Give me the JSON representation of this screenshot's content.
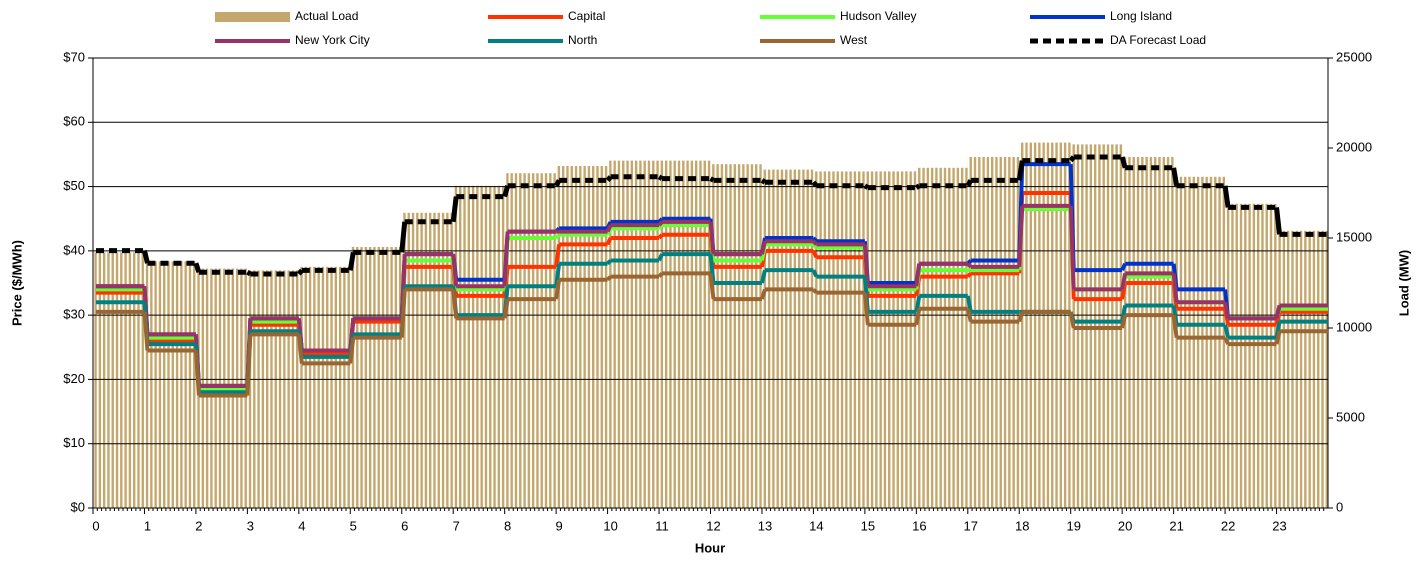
{
  "chart_data": {
    "type": "combo",
    "xlabel": "Hour",
    "ylabel": "Price ($/MWh)",
    "y2label": "Load (MW)",
    "categories": [
      "0",
      "1",
      "2",
      "3",
      "4",
      "5",
      "6",
      "7",
      "8",
      "9",
      "10",
      "11",
      "12",
      "13",
      "14",
      "15",
      "16",
      "17",
      "18",
      "19",
      "20",
      "21",
      "22",
      "23"
    ],
    "ylim": [
      0,
      70
    ],
    "yticks": [
      {
        "value": 0,
        "label": "$0"
      },
      {
        "value": 10,
        "label": "$10"
      },
      {
        "value": 20,
        "label": "$20"
      },
      {
        "value": 30,
        "label": "$30"
      },
      {
        "value": 40,
        "label": "$40"
      },
      {
        "value": 50,
        "label": "$50"
      },
      {
        "value": 60,
        "label": "$60"
      },
      {
        "value": 70,
        "label": "$70"
      }
    ],
    "y2lim": [
      0,
      25000
    ],
    "y2ticks": [
      0,
      5000,
      10000,
      15000,
      20000,
      25000
    ],
    "grid": true,
    "legend": "top",
    "series": [
      {
        "name": "Actual Load",
        "kind": "bar",
        "axis": "y2",
        "color": "#c4a76c",
        "values": [
          14200,
          13700,
          13300,
          13200,
          13400,
          14500,
          16400,
          17900,
          18600,
          19000,
          19300,
          19300,
          19100,
          18800,
          18700,
          18700,
          18900,
          19500,
          20300,
          20200,
          19500,
          18400,
          16900,
          15400
        ]
      },
      {
        "name": "Capital",
        "kind": "step",
        "color": "#ff3300",
        "values": [
          33.5,
          26,
          18.5,
          28.5,
          24,
          29,
          37.5,
          33,
          37.5,
          41,
          42,
          42.5,
          37.5,
          40,
          39,
          33,
          36,
          36.5,
          49,
          32.5,
          35,
          31,
          28.5,
          30.5
        ]
      },
      {
        "name": "Hudson Valley",
        "kind": "step",
        "color": "#66ff33",
        "values": [
          34,
          26.5,
          18.5,
          29,
          24.5,
          29.5,
          38.5,
          34,
          42,
          42.5,
          43.5,
          44,
          38.5,
          41,
          40.5,
          34,
          37,
          37,
          46.5,
          34,
          36,
          32,
          29.5,
          31
        ]
      },
      {
        "name": "Long Island",
        "kind": "step",
        "color": "#0033cc",
        "values": [
          34.5,
          27,
          19,
          29.5,
          24.5,
          29.5,
          39.5,
          35.5,
          43,
          43.5,
          44.5,
          45,
          39.5,
          42,
          41.5,
          35,
          38,
          38.5,
          53.5,
          37,
          38,
          34,
          29.5,
          31.5
        ]
      },
      {
        "name": "New York City",
        "kind": "step",
        "color": "#993366",
        "values": [
          34.5,
          27,
          19,
          29.5,
          24.5,
          29.5,
          39.5,
          34.5,
          43,
          43,
          44,
          44.5,
          39.5,
          41.5,
          41,
          34.5,
          38,
          37.5,
          47,
          34,
          36.5,
          32,
          29.5,
          31.5
        ]
      },
      {
        "name": "North",
        "kind": "step",
        "color": "#008080",
        "values": [
          32,
          25.5,
          18,
          27.5,
          23.5,
          27,
          34.5,
          30,
          34.5,
          38,
          38.5,
          39.5,
          35,
          37,
          36,
          30.5,
          33,
          30.5,
          30.5,
          29,
          31.5,
          28.5,
          26.5,
          29
        ]
      },
      {
        "name": "West",
        "kind": "step",
        "color": "#996633",
        "values": [
          30.5,
          24.5,
          17.5,
          27,
          22.5,
          26.5,
          34,
          29.5,
          32.5,
          35.5,
          36,
          36.5,
          32.5,
          34,
          33.5,
          28.5,
          31,
          29,
          30.5,
          28,
          30,
          26.5,
          25.5,
          27.5
        ]
      },
      {
        "name": "DA Forecast Load",
        "kind": "dashed",
        "axis": "y2",
        "color": "#000000",
        "values": [
          14300,
          13600,
          13100,
          13000,
          13200,
          14200,
          15900,
          17300,
          17900,
          18200,
          18400,
          18300,
          18200,
          18100,
          17900,
          17800,
          17900,
          18200,
          19300,
          19500,
          18900,
          17900,
          16700,
          15200
        ]
      }
    ]
  }
}
